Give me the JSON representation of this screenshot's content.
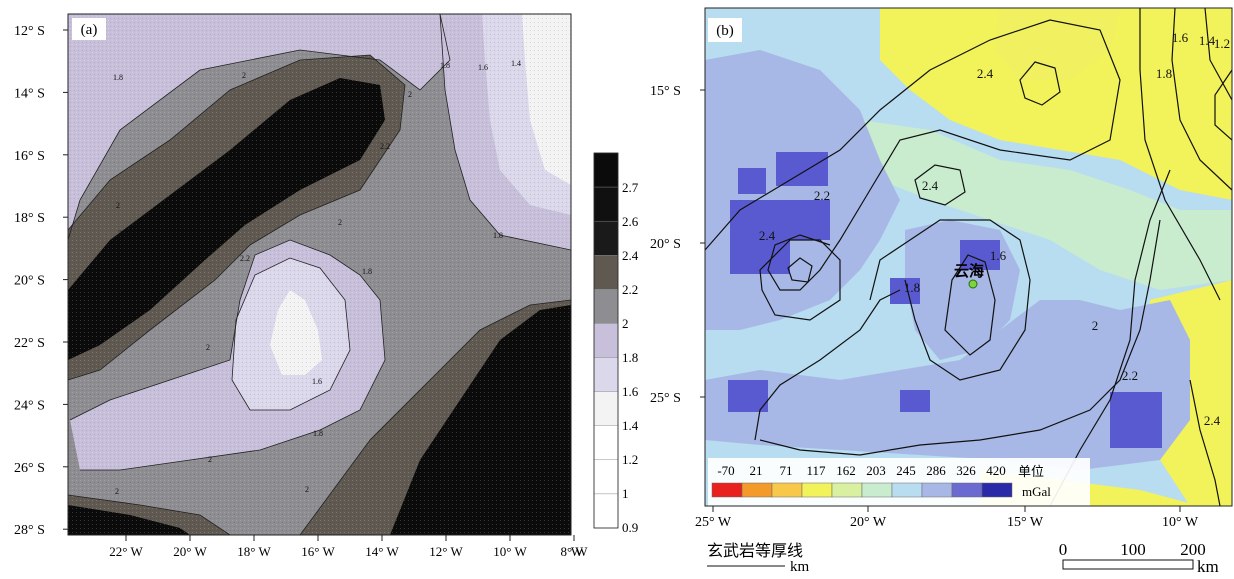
{
  "panel_a": {
    "tag": "(a)",
    "y_ticks": [
      "12° S",
      "14° S",
      "16° S",
      "18° S",
      "20° S",
      "22° S",
      "24° S",
      "26° S",
      "28° S"
    ],
    "x_ticks": [
      "22° W",
      "20° W",
      "18° W",
      "16° W",
      "14° W",
      "12° W",
      "10° W",
      "8° W"
    ],
    "colorbar": {
      "labels": [
        "2.7",
        "2.6",
        "2.4",
        "2.2",
        "2",
        "1.8",
        "1.6",
        "1.4",
        "1.2",
        "1",
        "0.9"
      ],
      "colors": [
        "#0b0b0b",
        "#101010",
        "#1a1a1a",
        "#5f5951",
        "#8e8d92",
        "#c8c0db",
        "#dcd8ec",
        "#f3f3f3",
        "#ffffff",
        "#ffffff",
        "#ffffff"
      ]
    },
    "contour_labels": [
      "1.8",
      "2",
      "2",
      "1.8",
      "1.6",
      "1.4",
      "2",
      "2",
      "2.2",
      "2",
      "2",
      "1.8",
      "1.8",
      "2",
      "1.6",
      "2",
      "1.8",
      "2",
      "2",
      "2.2"
    ]
  },
  "panel_b": {
    "tag": "(b)",
    "y_ticks": [
      "15° S",
      "20° S",
      "25° S"
    ],
    "x_ticks": [
      "25° W",
      "20° W",
      "15° W",
      "10° W"
    ],
    "place_name": "云海",
    "contour_labels": [
      "2.4",
      "2.4",
      "2.2",
      "2.4",
      "1.8",
      "1.6",
      "1.8",
      "1.6",
      "1.4",
      "1.2",
      "2",
      "2.2",
      "2.4"
    ],
    "legend": {
      "values": [
        "-70",
        "21",
        "71",
        "117",
        "162",
        "203",
        "245",
        "286",
        "326",
        "420"
      ],
      "unit_word": "单位",
      "unit": "mGal",
      "colors": [
        "#e8201e",
        "#f49a2a",
        "#f7c84a",
        "#f2f25a",
        "#d8f0a0",
        "#c8eccd",
        "#b8dcf0",
        "#a8b8e6",
        "#6a6ad0",
        "#2a2aa8"
      ]
    },
    "footer_left": "玄武岩等厚线",
    "footer_left_unit": "km",
    "scale": {
      "labels": [
        "0",
        "100",
        "200"
      ],
      "unit": "km"
    }
  }
}
